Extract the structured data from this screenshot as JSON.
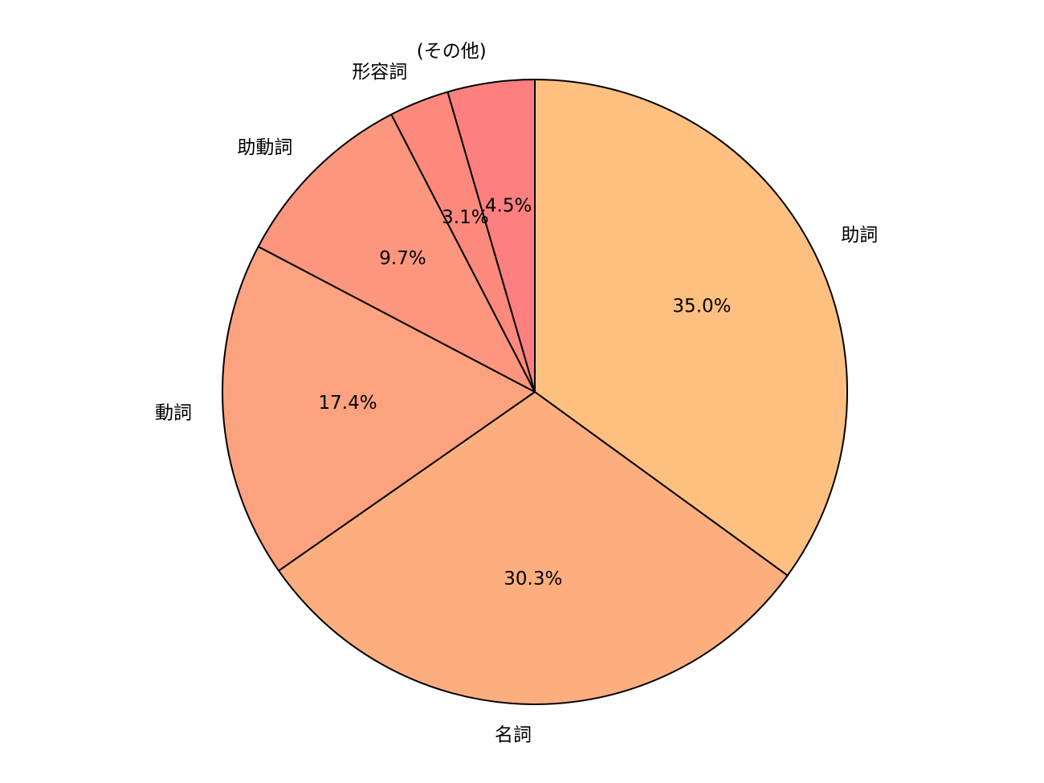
{
  "chart_data": {
    "type": "pie",
    "categories": [
      "助詞",
      "名詞",
      "動詞",
      "助動詞",
      "形容詞",
      "(その他)"
    ],
    "values": [
      35.0,
      30.3,
      17.4,
      9.7,
      3.1,
      4.5
    ],
    "percent_labels": [
      "35.0%",
      "30.3%",
      "17.4%",
      "9.7%",
      "3.1%",
      "4.5%"
    ],
    "colors": [
      "#fec080",
      "#fdae7e",
      "#fda27e",
      "#fd967e",
      "#fd897d",
      "#fe7f7f"
    ],
    "start_angle_deg": 90,
    "direction": "clockwise",
    "edge_color": "#000000"
  }
}
